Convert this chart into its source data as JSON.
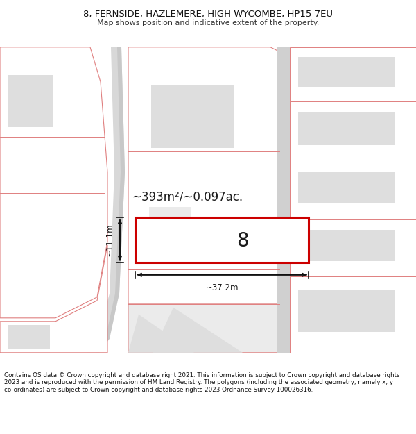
{
  "title_line1": "8, FERNSIDE, HAZLEMERE, HIGH WYCOMBE, HP15 7EU",
  "title_line2": "Map shows position and indicative extent of the property.",
  "footer_text": "Contains OS data © Crown copyright and database right 2021. This information is subject to Crown copyright and database rights 2023 and is reproduced with the permission of HM Land Registry. The polygons (including the associated geometry, namely x, y co-ordinates) are subject to Crown copyright and database rights 2023 Ordnance Survey 100026316.",
  "area_text": "~393m²/~0.097ac.",
  "width_label": "~37.2m",
  "height_label": "~11.1m",
  "house_number": "8",
  "map_bg": "#f5f5f5",
  "plot_outline": "#e08080",
  "red_outline": "#cc0000",
  "fill_white": "#ffffff",
  "fill_gray": "#dedede",
  "fill_lightgray": "#ebebeb"
}
